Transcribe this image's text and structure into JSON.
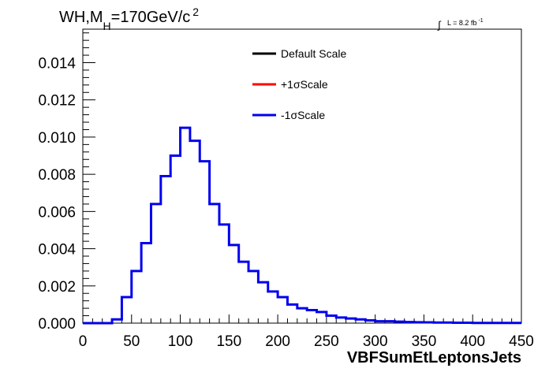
{
  "chart_data": {
    "type": "histogram",
    "title": "WH,M",
    "title_subscript": "H",
    "title_suffix": "=170GeV/c",
    "title_superscript": "2",
    "lumi_integral": "∫",
    "lumi_label": "L = 8.2 fb",
    "lumi_superscript": "-1",
    "xlabel": "VBFSumEtLeptonsJets",
    "ylabel": "",
    "xlim": [
      0,
      450
    ],
    "ylim": [
      0,
      0.0158
    ],
    "x_ticks": [
      0,
      50,
      100,
      150,
      200,
      250,
      300,
      350,
      400,
      450
    ],
    "x_tick_labels": [
      "0",
      "50",
      "100",
      "150",
      "200",
      "250",
      "300",
      "350",
      "400",
      "450"
    ],
    "y_ticks": [
      0,
      0.002,
      0.004,
      0.006,
      0.008,
      0.01,
      0.012,
      0.014
    ],
    "y_tick_labels": [
      "0.000",
      "0.002",
      "0.004",
      "0.006",
      "0.008",
      "0.010",
      "0.012",
      "0.014"
    ],
    "bin_width": 10,
    "bin_edges_start": 0,
    "legend": [
      {
        "name": "Default Scale",
        "color": "#000000"
      },
      {
        "name": "+1σScale",
        "color": "#ff0000"
      },
      {
        "name": "-1σScale",
        "color": "#0000ee"
      }
    ],
    "series": [
      {
        "name": "-1σScale",
        "color": "#0000ee",
        "values": [
          0,
          0,
          0,
          0.0002,
          0.0014,
          0.0028,
          0.0043,
          0.0064,
          0.0079,
          0.009,
          0.0105,
          0.0098,
          0.0087,
          0.0064,
          0.0053,
          0.0042,
          0.0033,
          0.0028,
          0.0022,
          0.0017,
          0.0014,
          0.001,
          0.0008,
          0.0007,
          0.0006,
          0.0004,
          0.0003,
          0.00025,
          0.0002,
          0.00015,
          0.0001,
          0.0001,
          8e-05,
          6e-05,
          5e-05,
          4e-05,
          3e-05,
          3e-05,
          2e-05,
          2e-05,
          1e-05,
          1e-05,
          1e-05,
          1e-05,
          1e-05
        ]
      }
    ],
    "grid": false,
    "legend_position": "top-center"
  }
}
